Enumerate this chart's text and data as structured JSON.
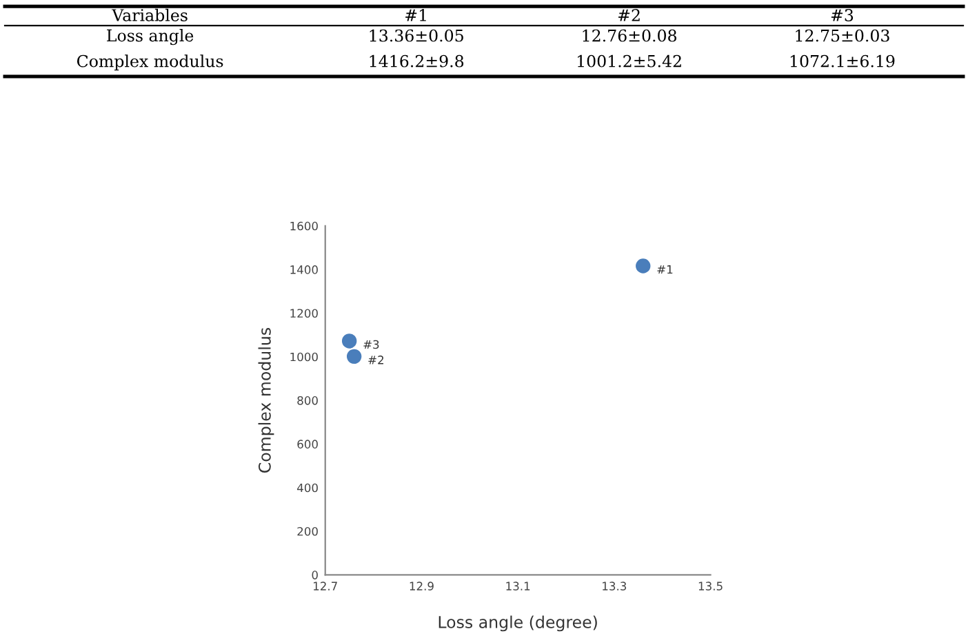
{
  "chart_data": {
    "type": "scatter",
    "xlabel": "Loss angle (degree)",
    "ylabel": "Complex modulus",
    "x": [
      13.36,
      12.76,
      12.75
    ],
    "series": [
      {
        "color": "#4a7ebb",
        "values": [
          1416.2,
          1001.2,
          1072.1
        ]
      }
    ],
    "marker": "circle",
    "xlim": [
      12.7,
      13.5
    ],
    "xticks": [
      12.7,
      12.9,
      13.1,
      13.3,
      13.5
    ],
    "ylim": [
      0,
      1600
    ],
    "yticks": [
      0,
      200,
      400,
      600,
      800,
      1000,
      1200,
      1400,
      1600
    ],
    "grid": false,
    "annotations": [
      {
        "text": "#1",
        "x": 13.36,
        "y": 1416.2
      },
      {
        "text": "#2",
        "x": 12.76,
        "y": 1001.2
      },
      {
        "text": "#3",
        "x": 12.75,
        "y": 1072.1
      },
      "Variables",
      "#1",
      "#2",
      "#3",
      "Loss angle",
      "13.36±0.05",
      "12.76±0.08",
      "12.75±0.03",
      "Complex modulus",
      "1416.2±9.8",
      "1001.2±5.42",
      "1072.1±6.19"
    ]
  }
}
